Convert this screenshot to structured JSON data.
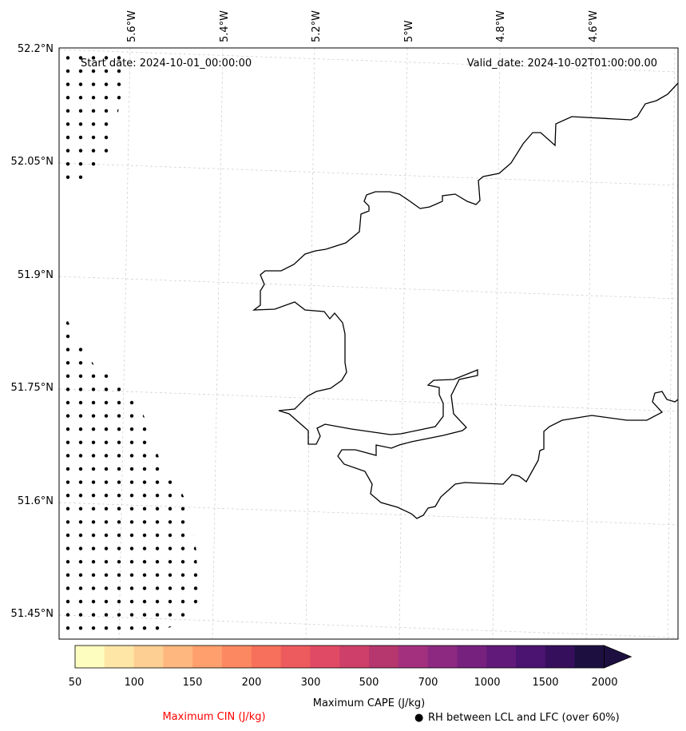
{
  "map": {
    "start_date": "Start date: 2024-10-01_00:00:00",
    "valid_date": "Valid_date: 2024-10-02T01:00:00.00",
    "lon_labels": [
      "5.6°W",
      "5.4°W",
      "5.2°W",
      "5°W",
      "4.8°W",
      "4.6°W"
    ],
    "lat_labels": [
      "52.2°N",
      "52.05°N",
      "51.9°N",
      "51.75°N",
      "51.6°N",
      "51.45°N"
    ],
    "gridlines": true,
    "coastline_color": "#000000",
    "hatching": "dots",
    "hatch_meaning": "RH between LCL and LFC (over 60%)"
  },
  "colorbar": {
    "title": "Maximum CAPE (J/kg)",
    "tick_labels": [
      "50",
      "100",
      "150",
      "200",
      "300",
      "500",
      "700",
      "1000",
      "1500",
      "2000"
    ],
    "colors": [
      "#fcfdbf",
      "#fee6a6",
      "#fecf92",
      "#feb77e",
      "#fe9f6d",
      "#fb8861",
      "#f6705c",
      "#ee5b5e",
      "#e04a65",
      "#ce3f69",
      "#b5376d",
      "#a3307e",
      "#8d2981",
      "#77217f",
      "#611a7a",
      "#4b1470",
      "#350f5c",
      "#1d1041"
    ],
    "extend": "max"
  },
  "legend": {
    "cin_label": "Maximum CIN (J/kg)",
    "cin_color": "#ff0000",
    "rh_marker": "●",
    "rh_label": "RH between LCL and LFC (over 60%)"
  }
}
